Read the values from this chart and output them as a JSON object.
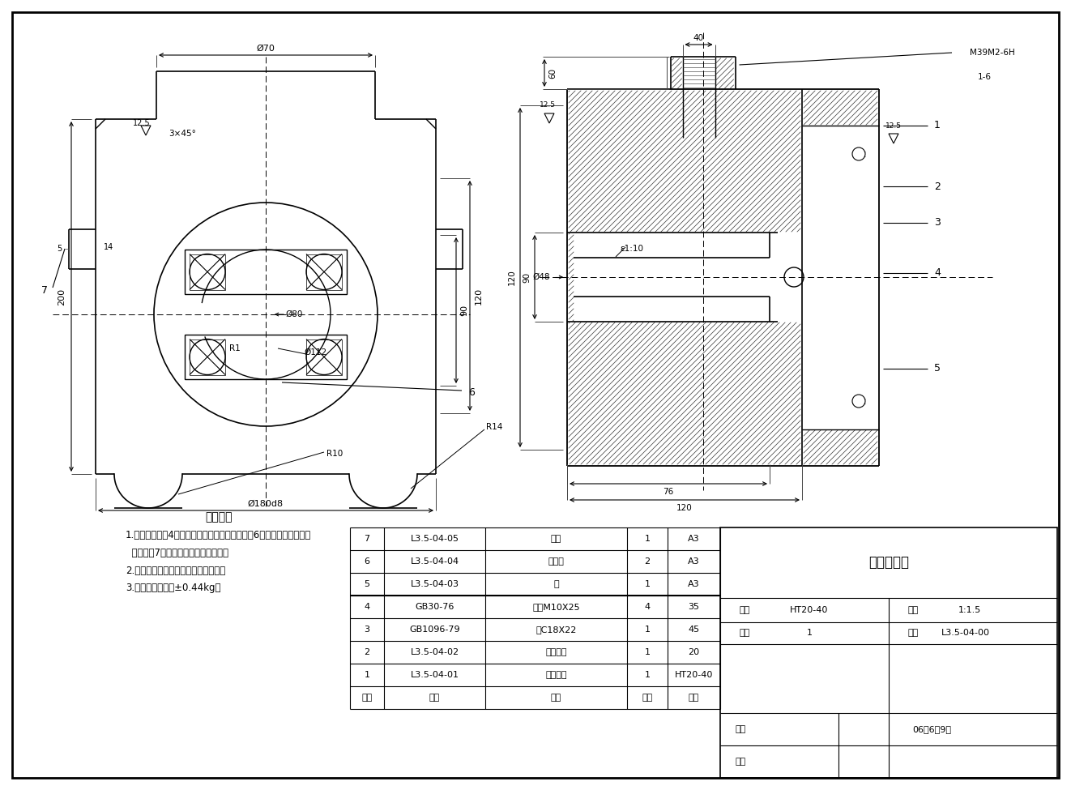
{
  "bg_color": "#ffffff",
  "line_color": "#000000",
  "tech_requirements_title": "技术要求",
  "tech_req_lines": [
    "1.待螺栓（序号4）全部旋紧后，将止动片（序号6）与螺旋头帖合，丝",
    "  堵（序号7）旋紧后冲率，以防松动。",
    "2.组装时应保证油孔对正，油路畅通。",
    "3.重量偏差不超过±0.44kg。"
  ],
  "bom_all_rows": [
    [
      "7",
      "L3.5-04-05",
      "丝堵",
      "1",
      "A3"
    ],
    [
      "6",
      "L3.5-04-04",
      "止动片",
      "2",
      "A3"
    ],
    [
      "5",
      "L3.5-04-03",
      "盖",
      "1",
      "A3"
    ],
    [
      "4",
      "GB30-76",
      "螺栓M10X25",
      "4",
      "35"
    ],
    [
      "3",
      "GB1096-79",
      "键C18X22",
      "1",
      "45"
    ],
    [
      "2",
      "L3.5-04-02",
      "十字头销",
      "1",
      "20"
    ],
    [
      "1",
      "L3.5-04-01",
      "十字头体",
      "1",
      "HT20-40"
    ],
    [
      "序号",
      "代号",
      "名称",
      "数量",
      "材料"
    ]
  ],
  "title_block": {
    "assembly": "十字头部件",
    "material_label": "材料",
    "material": "HT20-40",
    "scale_label": "比例",
    "scale": "1:1.5",
    "qty_label": "数量",
    "qty": "1",
    "drawing_no_label": "图号",
    "drawing_no": "L3.5-04-00",
    "drawn_label": "制图",
    "date": "06年6月9日",
    "checked_label": "审核"
  }
}
